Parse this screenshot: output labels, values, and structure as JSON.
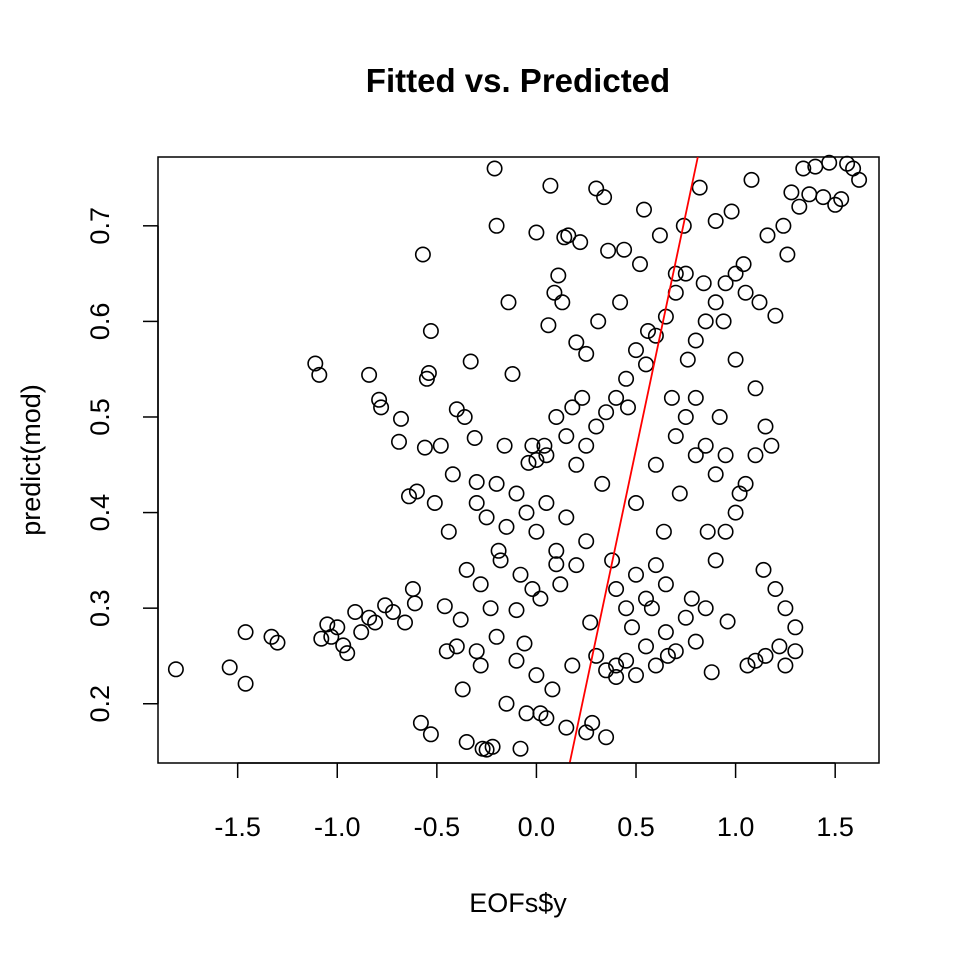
{
  "chart_data": {
    "type": "scatter",
    "title": "Fitted vs. Predicted",
    "xlabel": "EOFs$y",
    "ylabel": "predict(mod)",
    "xlim": [
      -1.9,
      1.72
    ],
    "ylim": [
      0.138,
      0.772
    ],
    "x_ticks": [
      -1.5,
      -1.0,
      -0.5,
      0.0,
      0.5,
      1.0,
      1.5
    ],
    "x_tick_labels": [
      "-1.5",
      "-1.0",
      "-0.5",
      "0.0",
      "0.5",
      "1.0",
      "1.5"
    ],
    "y_ticks": [
      0.2,
      0.3,
      0.4,
      0.5,
      0.6,
      0.7
    ],
    "y_tick_labels": [
      "0.2",
      "0.3",
      "0.4",
      "0.5",
      "0.6",
      "0.7"
    ],
    "grid": false,
    "legend": "none",
    "point_color": "#000000",
    "line_color": "#ff0000",
    "fit_line": {
      "intercept": -0.0267,
      "slope": 0.9857
    },
    "series": [
      {
        "points": [
          [
            -1.81,
            0.236
          ],
          [
            -1.54,
            0.238
          ],
          [
            -1.46,
            0.275
          ],
          [
            -1.46,
            0.221
          ],
          [
            -1.33,
            0.27
          ],
          [
            -1.3,
            0.264
          ],
          [
            -1.11,
            0.556
          ],
          [
            -1.09,
            0.544
          ],
          [
            -1.08,
            0.268
          ],
          [
            -1.05,
            0.283
          ],
          [
            -1.03,
            0.27
          ],
          [
            -1.0,
            0.28
          ],
          [
            -0.97,
            0.261
          ],
          [
            -0.95,
            0.253
          ],
          [
            -0.91,
            0.296
          ],
          [
            -0.88,
            0.275
          ],
          [
            -0.84,
            0.544
          ],
          [
            -0.84,
            0.29
          ],
          [
            -0.81,
            0.285
          ],
          [
            -0.79,
            0.518
          ],
          [
            -0.78,
            0.51
          ],
          [
            -0.76,
            0.303
          ],
          [
            -0.72,
            0.296
          ],
          [
            -0.69,
            0.474
          ],
          [
            -0.68,
            0.498
          ],
          [
            -0.66,
            0.285
          ],
          [
            -0.64,
            0.417
          ],
          [
            -0.62,
            0.32
          ],
          [
            -0.61,
            0.305
          ],
          [
            -0.6,
            0.422
          ],
          [
            -0.58,
            0.18
          ],
          [
            -0.57,
            0.67
          ],
          [
            -0.56,
            0.468
          ],
          [
            -0.55,
            0.54
          ],
          [
            -0.54,
            0.546
          ],
          [
            -0.53,
            0.59
          ],
          [
            -0.53,
            0.168
          ],
          [
            -0.51,
            0.41
          ],
          [
            -0.48,
            0.47
          ],
          [
            -0.46,
            0.302
          ],
          [
            -0.45,
            0.255
          ],
          [
            -0.44,
            0.38
          ],
          [
            -0.42,
            0.44
          ],
          [
            -0.4,
            0.508
          ],
          [
            -0.38,
            0.288
          ],
          [
            -0.37,
            0.215
          ],
          [
            -0.36,
            0.5
          ],
          [
            -0.35,
            0.16
          ],
          [
            -0.33,
            0.558
          ],
          [
            -0.31,
            0.478
          ],
          [
            -0.3,
            0.432
          ],
          [
            -0.28,
            0.24
          ],
          [
            -0.27,
            0.153
          ],
          [
            -0.25,
            0.152
          ],
          [
            -0.23,
            0.3
          ],
          [
            -0.22,
            0.155
          ],
          [
            -0.21,
            0.76
          ],
          [
            -0.2,
            0.7
          ],
          [
            -0.19,
            0.36
          ],
          [
            -0.16,
            0.47
          ],
          [
            -0.14,
            0.62
          ],
          [
            -0.12,
            0.545
          ],
          [
            -0.1,
            0.298
          ],
          [
            -0.08,
            0.153
          ],
          [
            -0.06,
            0.263
          ],
          [
            -0.04,
            0.452
          ],
          [
            -0.02,
            0.32
          ],
          [
            0.0,
            0.693
          ],
          [
            0.02,
            0.19
          ],
          [
            0.04,
            0.47
          ],
          [
            0.06,
            0.596
          ],
          [
            0.07,
            0.742
          ],
          [
            0.09,
            0.63
          ],
          [
            0.1,
            0.346
          ],
          [
            0.11,
            0.648
          ],
          [
            0.13,
            0.62
          ],
          [
            0.14,
            0.688
          ],
          [
            0.16,
            0.69
          ],
          [
            0.18,
            0.24
          ],
          [
            0.2,
            0.578
          ],
          [
            0.22,
            0.683
          ],
          [
            0.23,
            0.52
          ],
          [
            0.25,
            0.566
          ],
          [
            0.27,
            0.285
          ],
          [
            0.28,
            0.18
          ],
          [
            0.3,
            0.739
          ],
          [
            0.31,
            0.6
          ],
          [
            0.33,
            0.43
          ],
          [
            0.34,
            0.73
          ],
          [
            0.36,
            0.674
          ],
          [
            0.38,
            0.35
          ],
          [
            0.4,
            0.24
          ],
          [
            0.42,
            0.62
          ],
          [
            0.44,
            0.675
          ],
          [
            0.46,
            0.51
          ],
          [
            0.48,
            0.28
          ],
          [
            0.5,
            0.41
          ],
          [
            0.52,
            0.66
          ],
          [
            0.54,
            0.717
          ],
          [
            0.56,
            0.59
          ],
          [
            0.58,
            0.3
          ],
          [
            0.6,
            0.45
          ],
          [
            0.62,
            0.69
          ],
          [
            0.64,
            0.38
          ],
          [
            0.66,
            0.25
          ],
          [
            0.68,
            0.52
          ],
          [
            0.7,
            0.65
          ],
          [
            0.72,
            0.42
          ],
          [
            0.74,
            0.7
          ],
          [
            0.76,
            0.56
          ],
          [
            0.78,
            0.31
          ],
          [
            0.8,
            0.46
          ],
          [
            0.82,
            0.74
          ],
          [
            0.84,
            0.64
          ],
          [
            0.86,
            0.38
          ],
          [
            0.88,
            0.233
          ],
          [
            0.9,
            0.705
          ],
          [
            0.92,
            0.5
          ],
          [
            0.94,
            0.6
          ],
          [
            0.96,
            0.286
          ],
          [
            0.98,
            0.715
          ],
          [
            1.0,
            0.56
          ],
          [
            1.02,
            0.42
          ],
          [
            1.04,
            0.66
          ],
          [
            1.06,
            0.24
          ],
          [
            1.08,
            0.748
          ],
          [
            1.1,
            0.53
          ],
          [
            1.12,
            0.62
          ],
          [
            1.14,
            0.34
          ],
          [
            1.16,
            0.69
          ],
          [
            1.18,
            0.47
          ],
          [
            1.2,
            0.606
          ],
          [
            1.22,
            0.26
          ],
          [
            1.24,
            0.7
          ],
          [
            1.26,
            0.67
          ],
          [
            1.28,
            0.735
          ],
          [
            1.3,
            0.255
          ],
          [
            1.32,
            0.72
          ],
          [
            1.34,
            0.76
          ],
          [
            1.37,
            0.733
          ],
          [
            1.4,
            0.762
          ],
          [
            1.44,
            0.73
          ],
          [
            1.47,
            0.766
          ],
          [
            1.5,
            0.722
          ],
          [
            1.53,
            0.728
          ],
          [
            1.56,
            0.765
          ],
          [
            1.59,
            0.76
          ],
          [
            1.62,
            0.748
          ],
          [
            -0.3,
            0.41
          ],
          [
            -0.25,
            0.395
          ],
          [
            -0.2,
            0.43
          ],
          [
            -0.15,
            0.385
          ],
          [
            -0.1,
            0.42
          ],
          [
            -0.05,
            0.4
          ],
          [
            0.0,
            0.38
          ],
          [
            0.05,
            0.41
          ],
          [
            0.1,
            0.36
          ],
          [
            0.15,
            0.395
          ],
          [
            0.2,
            0.345
          ],
          [
            0.25,
            0.37
          ],
          [
            -0.35,
            0.34
          ],
          [
            -0.28,
            0.325
          ],
          [
            -0.18,
            0.35
          ],
          [
            -0.08,
            0.335
          ],
          [
            0.02,
            0.31
          ],
          [
            0.12,
            0.325
          ],
          [
            -0.4,
            0.26
          ],
          [
            -0.3,
            0.255
          ],
          [
            -0.2,
            0.27
          ],
          [
            -0.1,
            0.245
          ],
          [
            0.0,
            0.23
          ],
          [
            0.08,
            0.215
          ],
          [
            -0.15,
            0.2
          ],
          [
            -0.05,
            0.19
          ],
          [
            0.05,
            0.185
          ],
          [
            0.15,
            0.175
          ],
          [
            0.25,
            0.17
          ],
          [
            0.35,
            0.165
          ],
          [
            0.3,
            0.25
          ],
          [
            0.35,
            0.235
          ],
          [
            0.4,
            0.228
          ],
          [
            0.45,
            0.245
          ],
          [
            0.5,
            0.23
          ],
          [
            0.55,
            0.26
          ],
          [
            0.6,
            0.24
          ],
          [
            0.65,
            0.275
          ],
          [
            0.7,
            0.255
          ],
          [
            0.75,
            0.29
          ],
          [
            0.8,
            0.265
          ],
          [
            0.85,
            0.3
          ],
          [
            0.4,
            0.32
          ],
          [
            0.45,
            0.3
          ],
          [
            0.5,
            0.335
          ],
          [
            0.55,
            0.31
          ],
          [
            0.6,
            0.345
          ],
          [
            0.65,
            0.325
          ],
          [
            0.9,
            0.35
          ],
          [
            0.95,
            0.38
          ],
          [
            1.0,
            0.4
          ],
          [
            1.05,
            0.43
          ],
          [
            1.1,
            0.46
          ],
          [
            1.15,
            0.49
          ],
          [
            0.8,
            0.58
          ],
          [
            0.85,
            0.6
          ],
          [
            0.9,
            0.62
          ],
          [
            0.95,
            0.64
          ],
          [
            1.0,
            0.65
          ],
          [
            1.05,
            0.63
          ],
          [
            0.7,
            0.48
          ],
          [
            0.75,
            0.5
          ],
          [
            0.8,
            0.52
          ],
          [
            0.85,
            0.47
          ],
          [
            0.9,
            0.44
          ],
          [
            0.95,
            0.46
          ],
          [
            1.2,
            0.32
          ],
          [
            1.25,
            0.3
          ],
          [
            1.3,
            0.28
          ],
          [
            1.15,
            0.25
          ],
          [
            1.1,
            0.245
          ],
          [
            1.25,
            0.24
          ],
          [
            0.2,
            0.45
          ],
          [
            0.25,
            0.47
          ],
          [
            0.3,
            0.49
          ],
          [
            0.35,
            0.505
          ],
          [
            0.4,
            0.52
          ],
          [
            0.45,
            0.54
          ],
          [
            0.1,
            0.5
          ],
          [
            0.15,
            0.48
          ],
          [
            0.05,
            0.46
          ],
          [
            0.0,
            0.455
          ],
          [
            -0.02,
            0.47
          ],
          [
            0.18,
            0.51
          ],
          [
            0.5,
            0.57
          ],
          [
            0.55,
            0.555
          ],
          [
            0.6,
            0.585
          ],
          [
            0.65,
            0.605
          ],
          [
            0.7,
            0.63
          ],
          [
            0.75,
            0.65
          ]
        ]
      }
    ]
  }
}
